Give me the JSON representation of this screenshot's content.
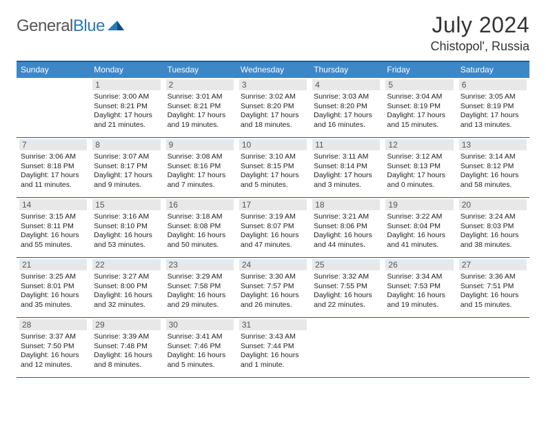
{
  "brand": {
    "part1": "General",
    "part2": "Blue"
  },
  "title": "July 2024",
  "location": "Chistopol', Russia",
  "header_bg": "#3d87c7",
  "header_border": "#1f5d94",
  "daynum_bg": "#e8e8e8",
  "text_color": "#222222",
  "day_names": [
    "Sunday",
    "Monday",
    "Tuesday",
    "Wednesday",
    "Thursday",
    "Friday",
    "Saturday"
  ],
  "weeks": [
    [
      {
        "n": "",
        "sr": "",
        "ss": "",
        "dl": ""
      },
      {
        "n": "1",
        "sr": "3:00 AM",
        "ss": "8:21 PM",
        "dl": "17 hours and 21 minutes."
      },
      {
        "n": "2",
        "sr": "3:01 AM",
        "ss": "8:21 PM",
        "dl": "17 hours and 19 minutes."
      },
      {
        "n": "3",
        "sr": "3:02 AM",
        "ss": "8:20 PM",
        "dl": "17 hours and 18 minutes."
      },
      {
        "n": "4",
        "sr": "3:03 AM",
        "ss": "8:20 PM",
        "dl": "17 hours and 16 minutes."
      },
      {
        "n": "5",
        "sr": "3:04 AM",
        "ss": "8:19 PM",
        "dl": "17 hours and 15 minutes."
      },
      {
        "n": "6",
        "sr": "3:05 AM",
        "ss": "8:19 PM",
        "dl": "17 hours and 13 minutes."
      }
    ],
    [
      {
        "n": "7",
        "sr": "3:06 AM",
        "ss": "8:18 PM",
        "dl": "17 hours and 11 minutes."
      },
      {
        "n": "8",
        "sr": "3:07 AM",
        "ss": "8:17 PM",
        "dl": "17 hours and 9 minutes."
      },
      {
        "n": "9",
        "sr": "3:08 AM",
        "ss": "8:16 PM",
        "dl": "17 hours and 7 minutes."
      },
      {
        "n": "10",
        "sr": "3:10 AM",
        "ss": "8:15 PM",
        "dl": "17 hours and 5 minutes."
      },
      {
        "n": "11",
        "sr": "3:11 AM",
        "ss": "8:14 PM",
        "dl": "17 hours and 3 minutes."
      },
      {
        "n": "12",
        "sr": "3:12 AM",
        "ss": "8:13 PM",
        "dl": "17 hours and 0 minutes."
      },
      {
        "n": "13",
        "sr": "3:14 AM",
        "ss": "8:12 PM",
        "dl": "16 hours and 58 minutes."
      }
    ],
    [
      {
        "n": "14",
        "sr": "3:15 AM",
        "ss": "8:11 PM",
        "dl": "16 hours and 55 minutes."
      },
      {
        "n": "15",
        "sr": "3:16 AM",
        "ss": "8:10 PM",
        "dl": "16 hours and 53 minutes."
      },
      {
        "n": "16",
        "sr": "3:18 AM",
        "ss": "8:08 PM",
        "dl": "16 hours and 50 minutes."
      },
      {
        "n": "17",
        "sr": "3:19 AM",
        "ss": "8:07 PM",
        "dl": "16 hours and 47 minutes."
      },
      {
        "n": "18",
        "sr": "3:21 AM",
        "ss": "8:06 PM",
        "dl": "16 hours and 44 minutes."
      },
      {
        "n": "19",
        "sr": "3:22 AM",
        "ss": "8:04 PM",
        "dl": "16 hours and 41 minutes."
      },
      {
        "n": "20",
        "sr": "3:24 AM",
        "ss": "8:03 PM",
        "dl": "16 hours and 38 minutes."
      }
    ],
    [
      {
        "n": "21",
        "sr": "3:25 AM",
        "ss": "8:01 PM",
        "dl": "16 hours and 35 minutes."
      },
      {
        "n": "22",
        "sr": "3:27 AM",
        "ss": "8:00 PM",
        "dl": "16 hours and 32 minutes."
      },
      {
        "n": "23",
        "sr": "3:29 AM",
        "ss": "7:58 PM",
        "dl": "16 hours and 29 minutes."
      },
      {
        "n": "24",
        "sr": "3:30 AM",
        "ss": "7:57 PM",
        "dl": "16 hours and 26 minutes."
      },
      {
        "n": "25",
        "sr": "3:32 AM",
        "ss": "7:55 PM",
        "dl": "16 hours and 22 minutes."
      },
      {
        "n": "26",
        "sr": "3:34 AM",
        "ss": "7:53 PM",
        "dl": "16 hours and 19 minutes."
      },
      {
        "n": "27",
        "sr": "3:36 AM",
        "ss": "7:51 PM",
        "dl": "16 hours and 15 minutes."
      }
    ],
    [
      {
        "n": "28",
        "sr": "3:37 AM",
        "ss": "7:50 PM",
        "dl": "16 hours and 12 minutes."
      },
      {
        "n": "29",
        "sr": "3:39 AM",
        "ss": "7:48 PM",
        "dl": "16 hours and 8 minutes."
      },
      {
        "n": "30",
        "sr": "3:41 AM",
        "ss": "7:46 PM",
        "dl": "16 hours and 5 minutes."
      },
      {
        "n": "31",
        "sr": "3:43 AM",
        "ss": "7:44 PM",
        "dl": "16 hours and 1 minute."
      },
      {
        "n": "",
        "sr": "",
        "ss": "",
        "dl": ""
      },
      {
        "n": "",
        "sr": "",
        "ss": "",
        "dl": ""
      },
      {
        "n": "",
        "sr": "",
        "ss": "",
        "dl": ""
      }
    ]
  ],
  "labels": {
    "sunrise": "Sunrise: ",
    "sunset": "Sunset: ",
    "daylight": "Daylight: "
  }
}
